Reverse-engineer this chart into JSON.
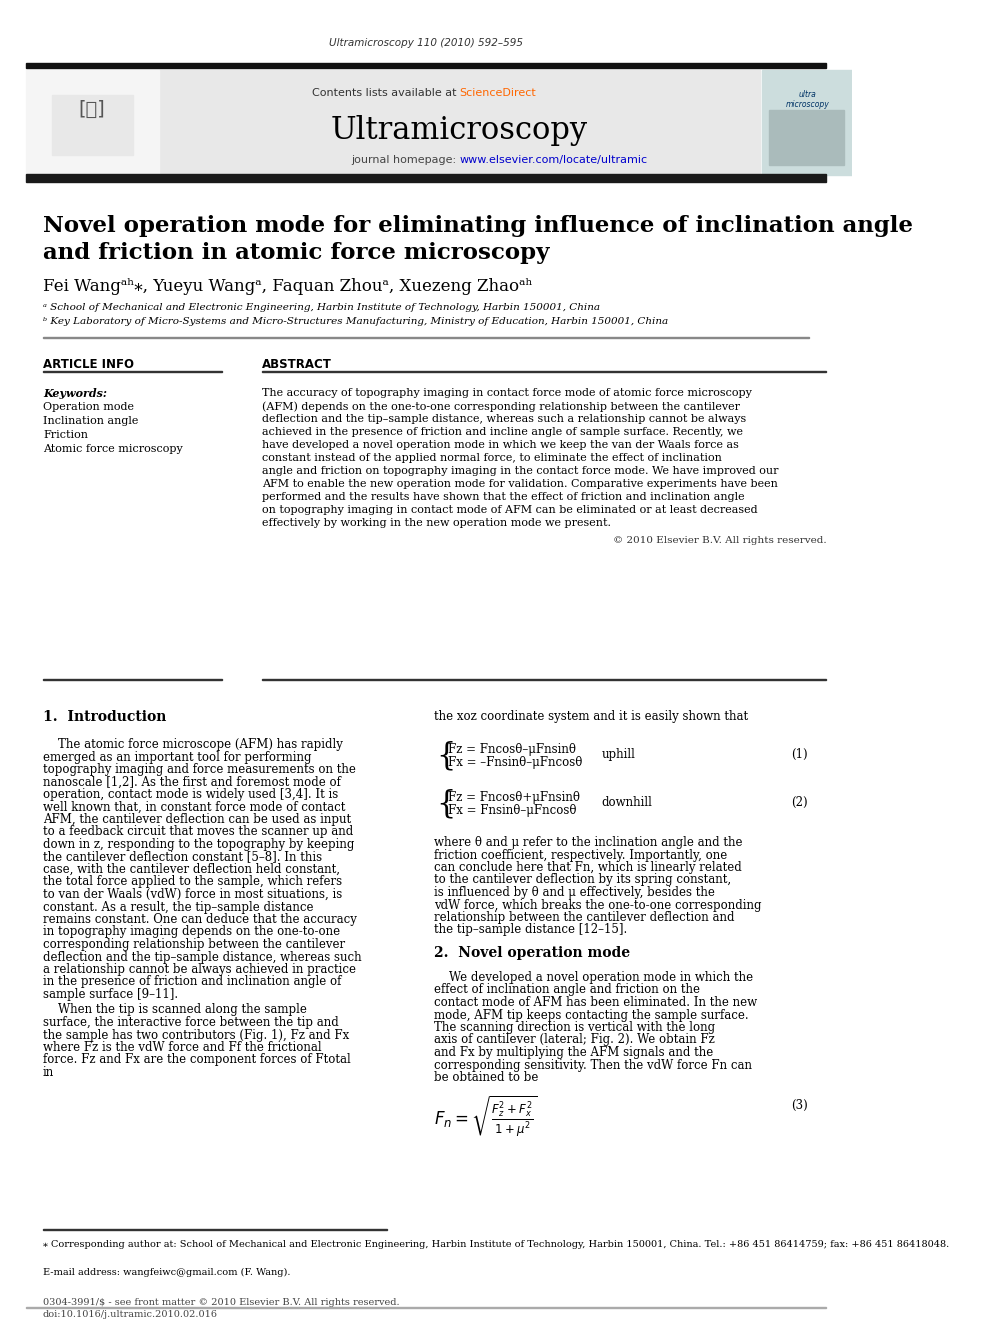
{
  "journal_citation": "Ultramicroscopy 110 (2010) 592–595",
  "header_text": "Contents lists available at ScienceDirect",
  "journal_name": "Ultramicroscopy",
  "journal_url": "journal homepage: www.elsevier.com/locate/ultramic",
  "title_line1": "Novel operation mode for eliminating influence of inclination angle",
  "title_line2": "and friction in atomic force microscopy",
  "authors": "Fei Wangᵃʰ⁎, Yueyu Wangᵃ, Faquan Zhouᵃ, Xuezeng Zhaoᵃʰ",
  "affil_a": "ᵃ School of Mechanical and Electronic Engineering, Harbin Institute of Technology, Harbin 150001, China",
  "affil_b": "ᵇ Key Laboratory of Micro-Systems and Micro-Structures Manufacturing, Ministry of Education, Harbin 150001, China",
  "article_info_title": "ARTICLE INFO",
  "keywords_title": "Keywords:",
  "keywords": [
    "Operation mode",
    "Inclination angle",
    "Friction",
    "Atomic force microscopy"
  ],
  "abstract_title": "ABSTRACT",
  "abstract_text": "The accuracy of topography imaging in contact force mode of atomic force microscopy (AFM) depends on the one-to-one corresponding relationship between the cantilever deflection and the tip–sample distance, whereas such a relationship cannot be always achieved in the presence of friction and incline angle of sample surface. Recently, we have developed a novel operation mode in which we keep the van der Waals force as constant instead of the applied normal force, to eliminate the effect of inclination angle and friction on topography imaging in the contact force mode. We have improved our AFM to enable the new operation mode for validation. Comparative experiments have been performed and the results have shown that the effect of friction and inclination angle on topography imaging in contact mode of AFM can be eliminated or at least decreased effectively by working in the new operation mode we present.",
  "copyright": "© 2010 Elsevier B.V. All rights reserved.",
  "intro_title": "1.  Introduction",
  "intro_text1": "    The atomic force microscope (AFM) has rapidly emerged as an important tool for performing topography imaging and force measurements on the nanoscale [1,2]. As the first and foremost mode of operation, contact mode is widely used [3,4]. It is well known that, in constant force mode of contact AFM, the cantilever deflection can be used as input to a feedback circuit that moves the scanner up and down in z, responding to the topography by keeping the cantilever deflection constant [5–8]. In this case, with the cantilever deflection held constant, the total force applied to the sample, which refers to van der Waals (vdW) force in most situations, is constant. As a result, the tip–sample distance remains constant. One can deduce that the accuracy in topography imaging depends on the one-to-one corresponding relationship between the cantilever deflection and the tip–sample distance, whereas such a relationship cannot be always achieved in practice in the presence of friction and inclination angle of sample surface [9–11].",
  "intro_text2": "    When the tip is scanned along the sample surface, the interactive force between the tip and the sample has two contributors (Fig. 1), Fz and Fx where Fz is the vdW force and Ff the frictional force. Fz and Fx are the component forces of Ftotal in",
  "right_col_text1": "the xoz coordinate system and it is easily shown that",
  "eq1_label": "(1)",
  "eq1_case1": "Fz = Fncosθ–μFnsinθ",
  "eq1_case2": "Fx = –Fnsinθ–μFncosθ",
  "eq1_condition": "uphill",
  "eq2_label": "(2)",
  "eq2_case1": "Fz = Fncosθ+μFnsinθ",
  "eq2_case2": "Fx = Fnsinθ–μFncosθ",
  "eq2_condition": "downhill",
  "right_col_text2": "where θ and μ refer to the inclination angle and the friction coefficient, respectively. Importantly, one can conclude here that Fn, which is linearly related to the cantilever deflection by its spring constant, is influenced by θ and μ effectively, besides the vdW force, which breaks the one-to-one corresponding relationship between the cantilever deflection and the tip–sample distance [12–15].",
  "section2_title": "2.  Novel operation mode",
  "section2_text": "    We developed a novel operation mode in which the effect of inclination angle and friction on the contact mode of AFM has been eliminated. In the new mode, AFM tip keeps contacting the sample surface. The scanning direction is vertical with the long axis of cantilever (lateral; Fig. 2). We obtain Fz and Fx by multiplying the AFM signals and the corresponding sensitivity. Then the vdW force Fn can be obtained to be",
  "eq3_label": "(3)",
  "eq3_text": "Fn = sqrt((Fz^2 + Fx^2) / (1 + mu^2))",
  "footnote_text": "⁎ Corresponding author at: School of Mechanical and Electronic Engineering, Harbin Institute of Technology, Harbin 150001, China. Tel.: +86 451 86414759; fax: +86 451 86418048.",
  "email_text": "E-mail address: wangfeiwc@gmail.com (F. Wang).",
  "footer_text1": "0304-3991/$ - see front matter © 2010 Elsevier B.V. All rights reserved.",
  "footer_text2": "doi:10.1016/j.ultramic.2010.02.016",
  "bg_color": "#ffffff",
  "header_bg": "#e8e8e8",
  "header_bar_color": "#1a1a1a",
  "sciencedirect_color": "#ff6600",
  "url_color": "#0000cc",
  "elsevier_orange": "#ff6600"
}
